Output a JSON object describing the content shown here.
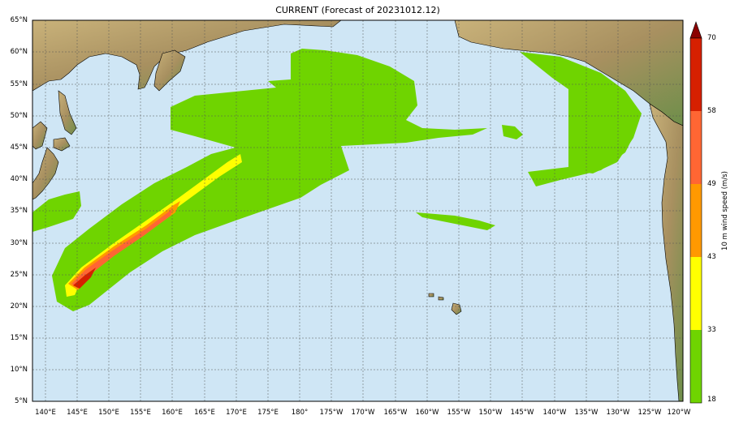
{
  "title": "CURRENT (Forecast of 20231012.12)",
  "map": {
    "lat_range": [
      5,
      65
    ],
    "lon_range_east": [
      137,
      240
    ],
    "lat_labels": [
      "65°N",
      "60°N",
      "55°N",
      "50°N",
      "45°N",
      "40°N",
      "35°N",
      "30°N",
      "25°N",
      "20°N",
      "15°N",
      "10°N",
      "5°N"
    ],
    "lon_labels": [
      "140°E",
      "145°E",
      "150°E",
      "155°E",
      "160°E",
      "165°E",
      "170°E",
      "175°E",
      "180°",
      "175°W",
      "170°W",
      "165°W",
      "160°W",
      "155°W",
      "150°W",
      "145°W",
      "140°W",
      "135°W",
      "130°W",
      "125°W",
      "120°W"
    ],
    "colors": {
      "ocean": "#cfe6f5",
      "land": "#b9a46e",
      "grid": "#555555"
    }
  },
  "colorbar": {
    "label": "10 m wind speed (m/s)",
    "ticks": [
      "70",
      "58",
      "49",
      "43",
      "33",
      "18"
    ],
    "bands": [
      {
        "from": 18,
        "to": 33,
        "color": "#6fd400"
      },
      {
        "from": 33,
        "to": 43,
        "color": "#ffff00"
      },
      {
        "from": 43,
        "to": 49,
        "color": "#ff9900"
      },
      {
        "from": 49,
        "to": 58,
        "color": "#ff6633"
      },
      {
        "from": 58,
        "to": 70,
        "color": "#d62000"
      }
    ],
    "extend_color": "#8b0000"
  }
}
